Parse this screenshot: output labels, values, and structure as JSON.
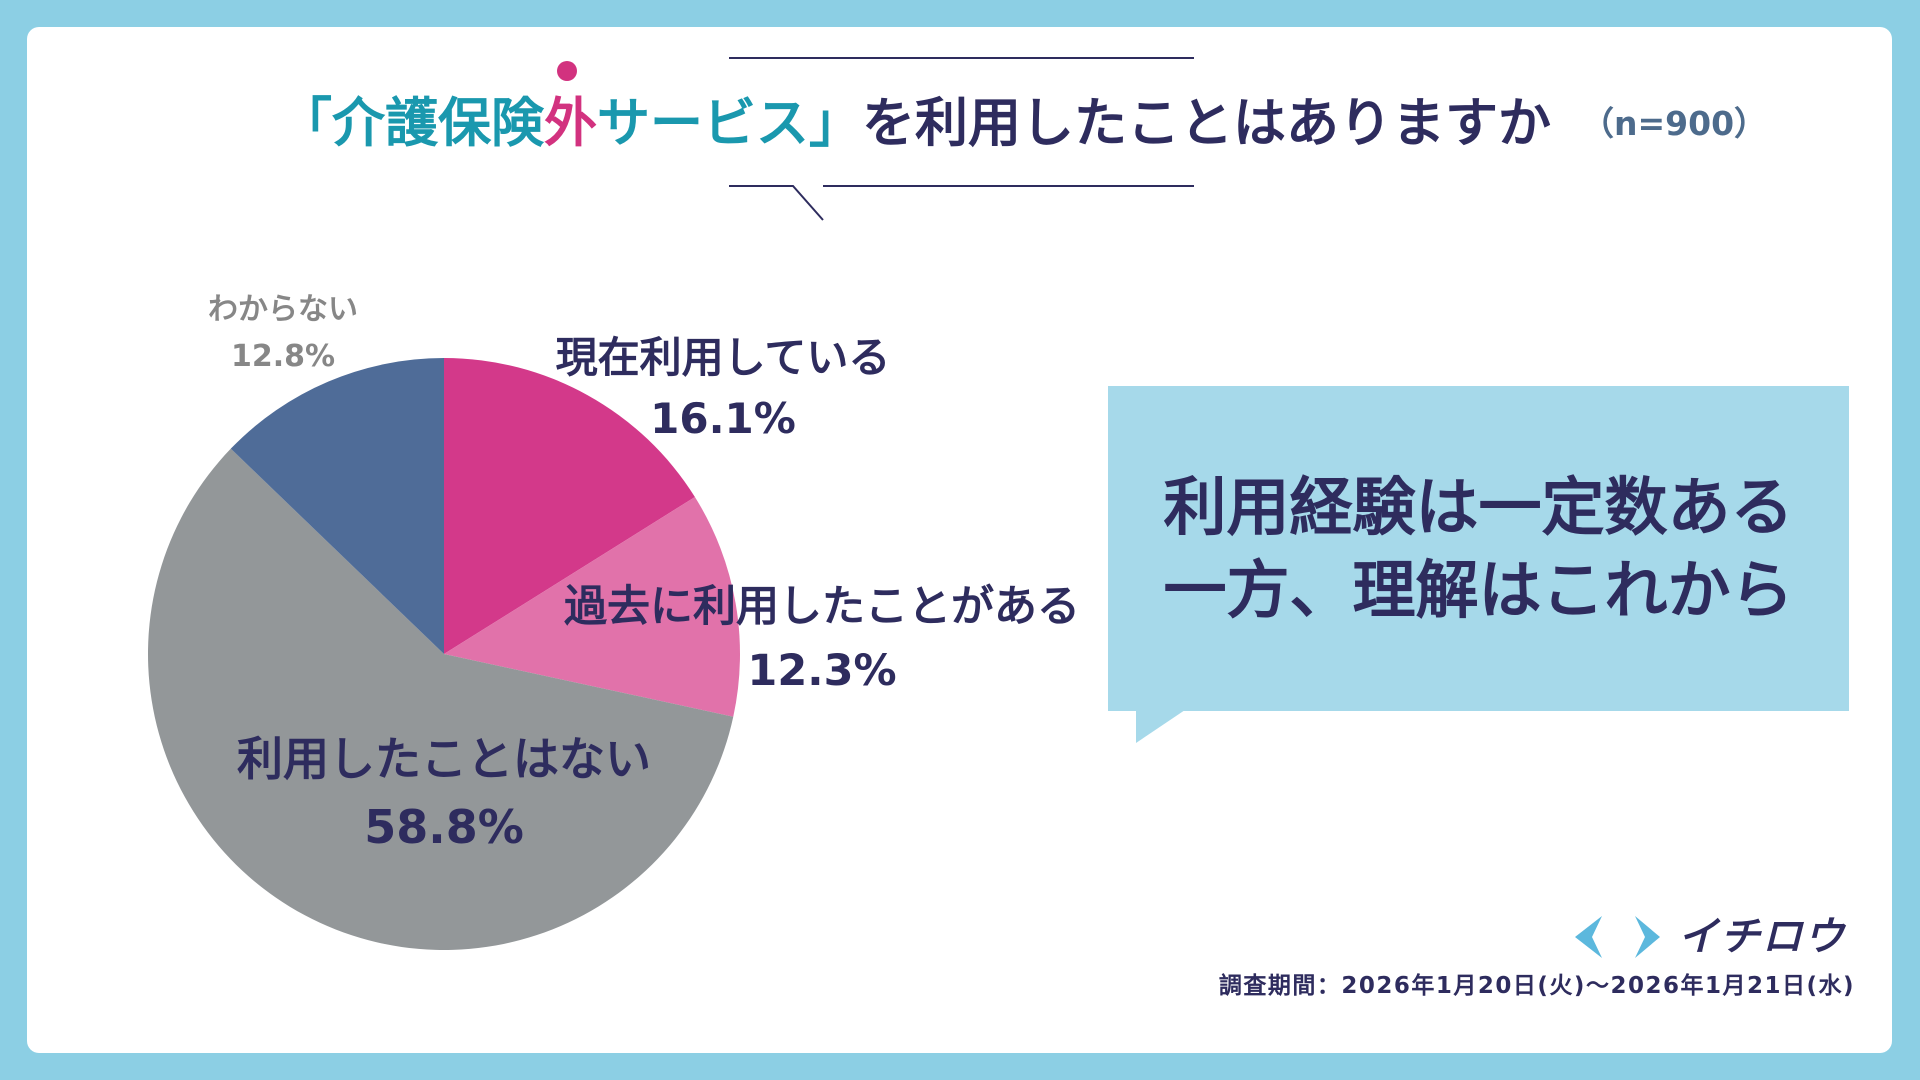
{
  "colors": {
    "background": "#8ccfe4",
    "card": "#ffffff",
    "teal": "#1a98ae",
    "magenta": "#d2327f",
    "navy": "#2e2c5e",
    "gray_label": "#878787",
    "n_label": "#4d6b8c",
    "callout": "#a6d9ea",
    "logo_accent": "#5cb8dd"
  },
  "title": {
    "part_teal_1": "「介護保険",
    "highlight": "外",
    "part_teal_2": "サービス」",
    "part_rest": "を利用したことはありますか",
    "sample_size": "（n=900）"
  },
  "chart_data": {
    "type": "pie",
    "slices": [
      {
        "label": "現在利用している",
        "value": 16.1,
        "value_label": "16.1%",
        "color": "#d3398a"
      },
      {
        "label": "過去に利用したことがある",
        "value": 12.3,
        "value_label": "12.3%",
        "color": "#e172aa"
      },
      {
        "label": "利用したことはない",
        "value": 58.8,
        "value_label": "58.8%",
        "color": "#939799"
      },
      {
        "label": "わからない",
        "value": 12.8,
        "value_label": "12.8%",
        "color": "#4f6c98"
      }
    ]
  },
  "callout": {
    "line1": "利用経験は一定数ある",
    "line2": "一方、理解はこれから"
  },
  "logo": {
    "text": "イチロウ",
    "icon": "chevron-brackets-icon"
  },
  "survey_period": "調査期間：2026年1月20日(火)〜2026年1月21日(水)"
}
